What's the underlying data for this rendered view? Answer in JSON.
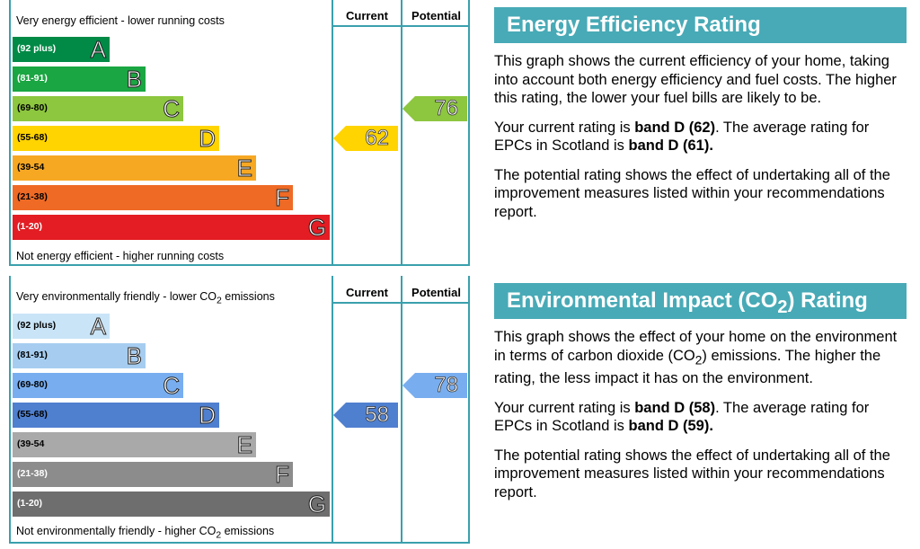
{
  "chart_data": [
    {
      "type": "bar",
      "categories": [
        "A",
        "B",
        "C",
        "D",
        "E",
        "F",
        "G"
      ],
      "ranges": [
        "(92 plus)",
        "(81-91)",
        "(69-80)",
        "(55-68)",
        "(39-54",
        "(21-38)",
        "(1-20)"
      ],
      "band_colors": [
        "#008a46",
        "#1aa642",
        "#8dc63f",
        "#ffd400",
        "#f7a823",
        "#ee6a25",
        "#e31d23"
      ],
      "range_text_colors": [
        "#ffffff",
        "#ffffff",
        "#000000",
        "#000000",
        "#000000",
        "#000000",
        "#ffffff"
      ],
      "top_label": "Very energy efficient - lower running costs",
      "bottom_label": "Not energy efficient - higher running costs",
      "column_headers": [
        "Current",
        "Potential"
      ],
      "current": {
        "value": 62,
        "band": "D",
        "color": "#ffd400"
      },
      "potential": {
        "value": 76,
        "band": "C",
        "color": "#8dc63f"
      }
    },
    {
      "type": "bar",
      "categories": [
        "A",
        "B",
        "C",
        "D",
        "E",
        "F",
        "G"
      ],
      "ranges": [
        "(92 plus)",
        "(81-91)",
        "(69-80)",
        "(55-68)",
        "(39-54",
        "(21-38)",
        "(1-20)"
      ],
      "band_colors": [
        "#c9e4f7",
        "#a6cdf0",
        "#78aef0",
        "#4f7fcf",
        "#a9a9a9",
        "#8c8c8c",
        "#6e6e6e"
      ],
      "range_text_colors": [
        "#000000",
        "#000000",
        "#000000",
        "#000000",
        "#000000",
        "#ffffff",
        "#ffffff"
      ],
      "top_label_pre": "Very environmentally friendly - lower CO",
      "top_label_sub": "2",
      "top_label_post": " emissions",
      "bottom_label_pre": "Not environmentally friendly - higher CO",
      "bottom_label_sub": "2",
      "bottom_label_post": " emissions",
      "column_headers": [
        "Current",
        "Potential"
      ],
      "current": {
        "value": 58,
        "band": "D",
        "color": "#4f7fcf"
      },
      "potential": {
        "value": 78,
        "band": "C",
        "color": "#78aef0"
      }
    }
  ],
  "panels": {
    "energy": {
      "title": "Energy Efficiency Rating",
      "p1": "This graph shows the current efficiency of your home, taking into account both energy efficiency and fuel costs. The higher this rating, the lower your fuel bills are likely to be.",
      "p2_pre": "Your current rating is ",
      "p2_bold1": "band D (62)",
      "p2_mid": ". The average rating for EPCs in Scotland is ",
      "p2_bold2": "band D (61).",
      "p3": "The potential rating shows the effect of undertaking all of the improvement measures listed within your recommendations report."
    },
    "environment": {
      "title_pre": "Environmental Impact (CO",
      "title_sub": "2",
      "title_post": ") Rating",
      "p1_pre": "This graph shows the effect of your home on the environment in terms of carbon dioxide (CO",
      "p1_sub": "2",
      "p1_post": ") emissions. The higher the rating, the less impact it has on the environment.",
      "p2_pre": "Your current rating is ",
      "p2_bold1": "band D (58)",
      "p2_mid": ". The average rating for EPCs in Scotland is ",
      "p2_bold2": "band D (59).",
      "p3": "The potential rating shows the effect of undertaking all of the improvement measures listed within your recommendations report."
    }
  }
}
